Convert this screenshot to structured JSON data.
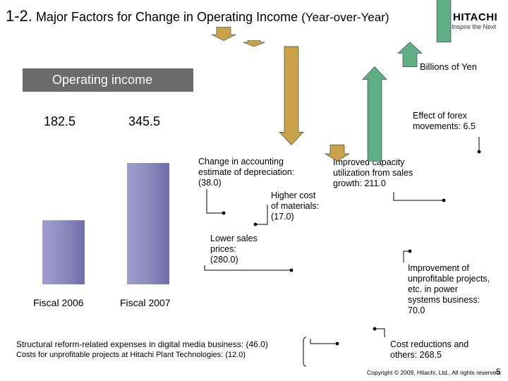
{
  "slide": {
    "title_num": "1-2.",
    "title_main": "Major Factors for Change in Operating Income",
    "title_paren": "(Year-over-Year)",
    "logo_main": "HITACHI",
    "logo_sub": "Inspire the Next",
    "unit": "Billions of Yen",
    "header": "Operating income",
    "footer": "Copyright © 2009, Hitachi, Ltd., All rights reserved.",
    "page_number": "5"
  },
  "chart_data": {
    "type": "bar",
    "y_unit": "Billions of Yen",
    "bars": [
      {
        "label": "Fiscal 2006",
        "value": 182.5,
        "value_label": "182.5"
      },
      {
        "label": "Fiscal 2007",
        "value": 345.5,
        "value_label": "345.5"
      }
    ],
    "factors": [
      {
        "label_lines": [
          "Change in accounting",
          "estimate of depreciation:",
          "(38.0)"
        ],
        "value": -38.0,
        "direction": "down",
        "color": "#c9a24a"
      },
      {
        "label_lines": [
          "Higher cost",
          "of materials:",
          "(17.0)"
        ],
        "value": -17.0,
        "direction": "down",
        "color": "#c9a24a"
      },
      {
        "label_lines": [
          "Lower sales",
          "prices:",
          "(280.0)"
        ],
        "value": -280.0,
        "direction": "down",
        "color": "#c9a24a"
      },
      {
        "label_lines": [
          "Structural reform-related expenses in digital media business: (46.0)"
        ],
        "value": -46.0,
        "direction": "down",
        "color": "#c9a24a"
      },
      {
        "label_lines": [
          "Costs for unprofitable projects at Hitachi Plant Technologies: (12.0)"
        ],
        "value": null,
        "direction": "note",
        "color": "#c9a24a"
      },
      {
        "label_lines": [
          "Cost reductions and",
          "others: 268.5"
        ],
        "value": 268.5,
        "direction": "up",
        "color": "#5fae86"
      },
      {
        "label_lines": [
          "Improvement of",
          "unprofitable projects,",
          "etc. in power",
          "systems business:",
          "70.0"
        ],
        "value": 70.0,
        "direction": "up",
        "color": "#5fae86"
      },
      {
        "label_lines": [
          "Improved capacity",
          "utilization from sales",
          "growth: 211.0"
        ],
        "value": 211.0,
        "direction": "up",
        "color": "#5fae86"
      },
      {
        "label_lines": [
          "Effect of forex",
          "movements: 6.5"
        ],
        "value": 6.5,
        "direction": "up",
        "color": "#5fae86"
      }
    ]
  }
}
